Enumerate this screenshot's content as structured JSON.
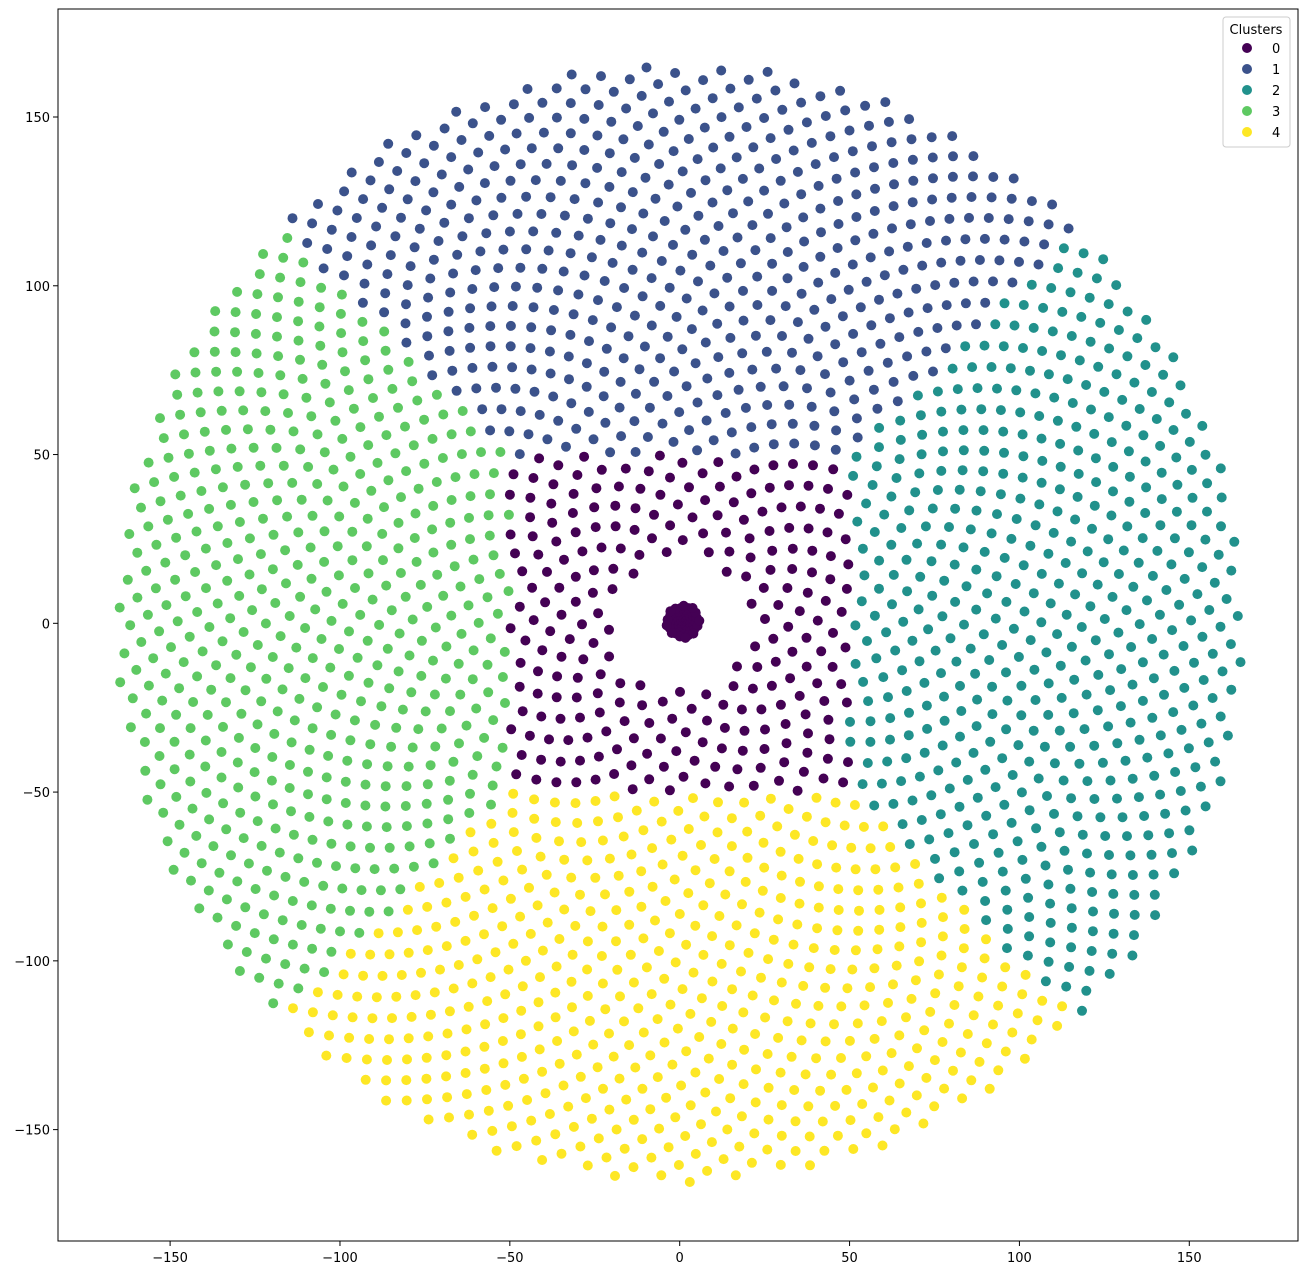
{
  "chart_data": {
    "type": "scatter",
    "title": "",
    "xlabel": "",
    "ylabel": "",
    "xlim": [
      -183,
      182
    ],
    "ylim": [
      -183,
      182
    ],
    "x_ticks": [
      -150,
      -100,
      -50,
      0,
      50,
      100,
      150
    ],
    "y_ticks": [
      150,
      100,
      50,
      0,
      -50,
      -100,
      -150
    ],
    "grid": false,
    "legend": {
      "title": "Clusters",
      "placement": "top-right",
      "entries": [
        "0",
        "1",
        "2",
        "3",
        "4"
      ]
    },
    "colors": {
      "0": "#440154",
      "1": "#3b528b",
      "2": "#21918c",
      "3": "#5ec962",
      "4": "#fde725"
    },
    "generator": {
      "description": "Sunflower (Fermat spiral) point pattern: r = scale*sqrt(i), theta = i*golden_angle",
      "outer_points": 2400,
      "outer_radius": 166,
      "hole_inner_radius": 20,
      "core_points": 60,
      "core_radius": 5,
      "cluster_rules": {
        "0": "central square |x|<=50, |y|<=50 plus core disk",
        "1": "top sector beyond square",
        "2": "right sector beyond square",
        "3": "left sector beyond square",
        "4": "bottom sector beyond square"
      }
    }
  }
}
